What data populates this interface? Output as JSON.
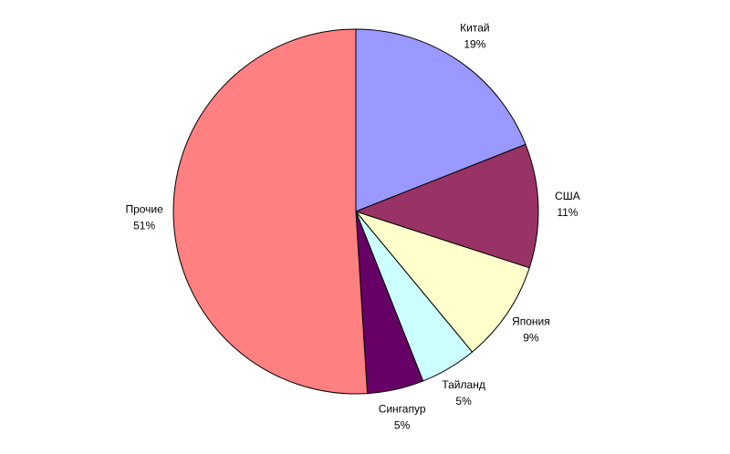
{
  "chart_data": {
    "type": "pie",
    "categories": [
      "Китай",
      "США",
      "Япония",
      "Тайланд",
      "Сингапур",
      "Прочие"
    ],
    "values": [
      19,
      11,
      9,
      5,
      5,
      51
    ],
    "value_labels": [
      "19%",
      "11%",
      "9%",
      "5%",
      "5%",
      "51%"
    ],
    "colors": [
      "#9999ff",
      "#993366",
      "#ffffcc",
      "#ccffff",
      "#660066",
      "#ff8080"
    ]
  }
}
